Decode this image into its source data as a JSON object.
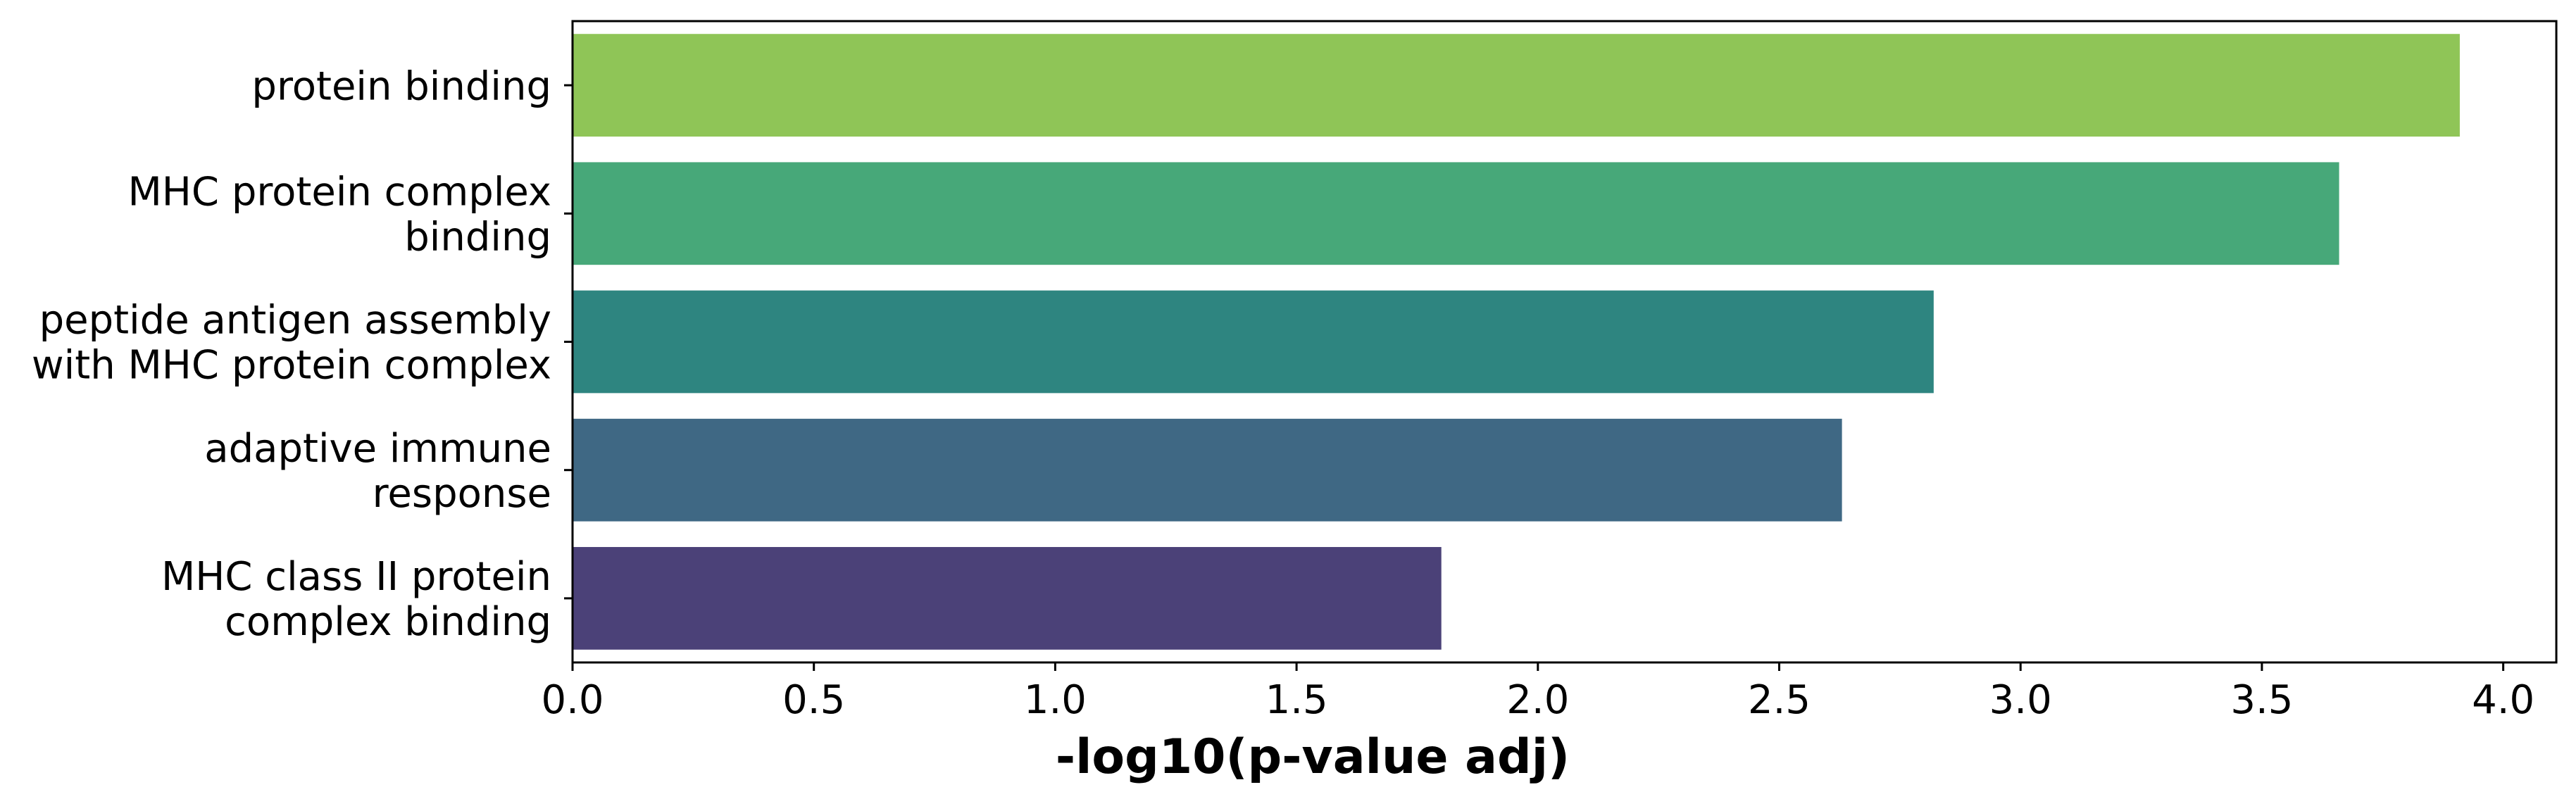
{
  "chart_data": {
    "type": "bar",
    "orientation": "horizontal",
    "title": "",
    "xlabel": "-log10(p-value adj)",
    "ylabel": "",
    "xlim": [
      0,
      4.11
    ],
    "grid": false,
    "legend": "none",
    "xticks": [
      "0.0",
      "0.5",
      "1.0",
      "1.5",
      "2.0",
      "2.5",
      "3.0",
      "3.5",
      "4.0"
    ],
    "categories": [
      [
        "protein binding"
      ],
      [
        "MHC protein complex",
        "binding"
      ],
      [
        "peptide antigen assembly",
        "with MHC protein complex"
      ],
      [
        "adaptive immune",
        "response"
      ],
      [
        "MHC class II protein",
        "complex binding"
      ]
    ],
    "values": [
      3.91,
      3.66,
      2.82,
      2.63,
      1.8
    ],
    "colors": [
      "#8fc557",
      "#47a879",
      "#2e8580",
      "#3f6884",
      "#4b4178"
    ]
  }
}
